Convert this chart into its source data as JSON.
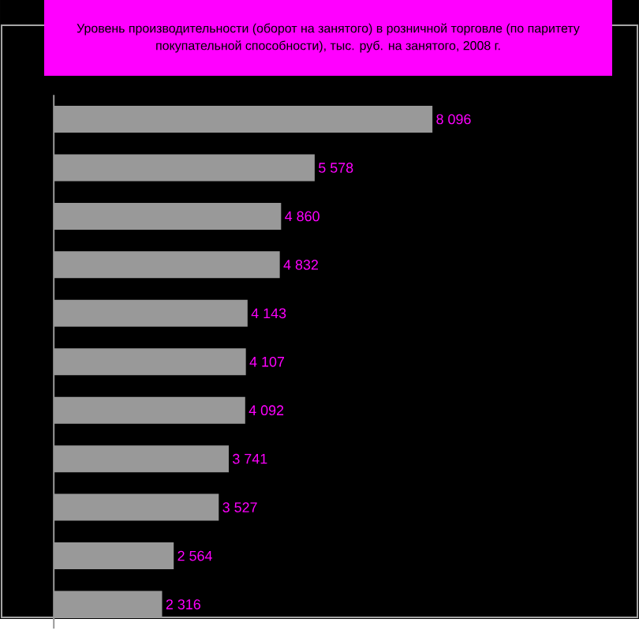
{
  "chart_data": {
    "type": "bar",
    "orientation": "horizontal",
    "title": "Уровень производительности (оборот на занятого) в розничной торговле (по паритету покупательной способности), тыс. руб. на занятого, 2008 г.",
    "categories": [
      null,
      null,
      null,
      null,
      null,
      null,
      null,
      null,
      null,
      null,
      null
    ],
    "values": [
      8096,
      5578,
      4860,
      4832,
      4143,
      4107,
      4092,
      3741,
      3527,
      2564,
      2316
    ],
    "value_labels": [
      "8 096",
      "5 578",
      "4 860",
      "4 832",
      "4 143",
      "4 107",
      "4 092",
      "3 741",
      "3 527",
      "2 564",
      "2 316"
    ],
    "color": "#999999",
    "tick_labels": false
  }
}
